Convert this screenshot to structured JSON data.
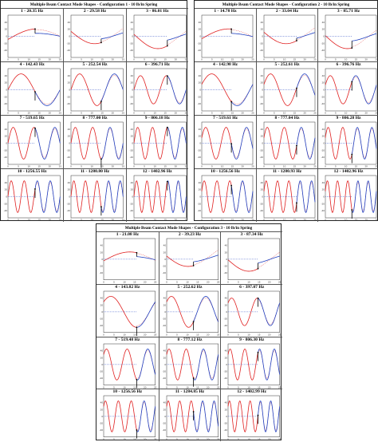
{
  "panels": [
    {
      "title": "Multiple Beam Contact Mode Shapes - Configuration 1 - 10 lb/in Spring",
      "modes": [
        "1 - 20.35 Hz",
        "2 - 29.58 Hz",
        "3 - 86.01 Hz",
        "4 - 142.43 Hz",
        "5 - 252.54 Hz",
        "6 - 396.71 Hz",
        "7 - 519.65 Hz",
        "8 - 777.00 Hz",
        "9 - 806.18 Hz",
        "10 - 1256.55 Hz",
        "11 - 1280.80 Hz",
        "12 - 1402.96 Hz"
      ]
    },
    {
      "title": "Multiple Beam Contact Mode Shapes - Configuration 2 - 10 lb/in Spring",
      "modes": [
        "1 - 14.78 Hz",
        "2 - 33.04 Hz",
        "3 - 85.71 Hz",
        "4 - 142.98 Hz",
        "5 - 252.61 Hz",
        "6 - 396.76 Hz",
        "7 - 519.61 Hz",
        "8 - 777.04 Hz",
        "9 - 806.28 Hz",
        "10 - 1256.56 Hz",
        "11 - 1280.93 Hz",
        "12 - 1402.96 Hz"
      ]
    },
    {
      "title": "Multiple Beam Contact Mode Shapes - Configuration 3 - 10 lb/in Spring",
      "modes": [
        "1 - 21.08 Hz",
        "2 - 39.23 Hz",
        "3 - 87.34 Hz",
        "4 - 143.82 Hz",
        "5 - 252.62 Hz",
        "6 - 397.07 Hz",
        "7 - 519.48 Hz",
        "8 - 777.12 Hz",
        "9 - 806.30 Hz",
        "10 - 1256.56 Hz",
        "11 - 1284.85 Hz",
        "12 - 1402.99 Hz"
      ]
    }
  ],
  "chart_data": {
    "type": "line",
    "xlim": [
      0,
      25
    ],
    "ylim": [
      -60,
      60
    ],
    "x_ticks": [
      "0",
      "5",
      "10",
      "15",
      "20",
      "25"
    ],
    "y_ticks": [
      "40",
      "20",
      "0",
      "-20",
      "-40"
    ],
    "grid": false,
    "colors": {
      "red_beam": "#e02020",
      "blue_beam": "#2040c0",
      "connector": "#000000"
    },
    "shapes": [
      {
        "mode": 1,
        "wave": "half",
        "amp": 30
      },
      {
        "mode": 2,
        "wave": "half-inverted",
        "amp": 35
      },
      {
        "mode": 3,
        "wave": "half-dip",
        "amp": 35
      },
      {
        "mode": 4,
        "wave": "dip-1",
        "amp": 45
      },
      {
        "mode": 5,
        "wave": "full-1",
        "amp": 45
      },
      {
        "mode": 6,
        "wave": "full-1.5",
        "amp": 40
      },
      {
        "mode": 7,
        "wave": "full-2",
        "amp": 45
      },
      {
        "mode": 8,
        "wave": "full-2.5",
        "amp": 45
      },
      {
        "mode": 9,
        "wave": "full-3",
        "amp": 45
      },
      {
        "mode": 10,
        "wave": "full-3.5",
        "amp": 45
      },
      {
        "mode": 11,
        "wave": "full-4",
        "amp": 45
      },
      {
        "mode": 12,
        "wave": "full-4.5",
        "amp": 45
      }
    ]
  }
}
